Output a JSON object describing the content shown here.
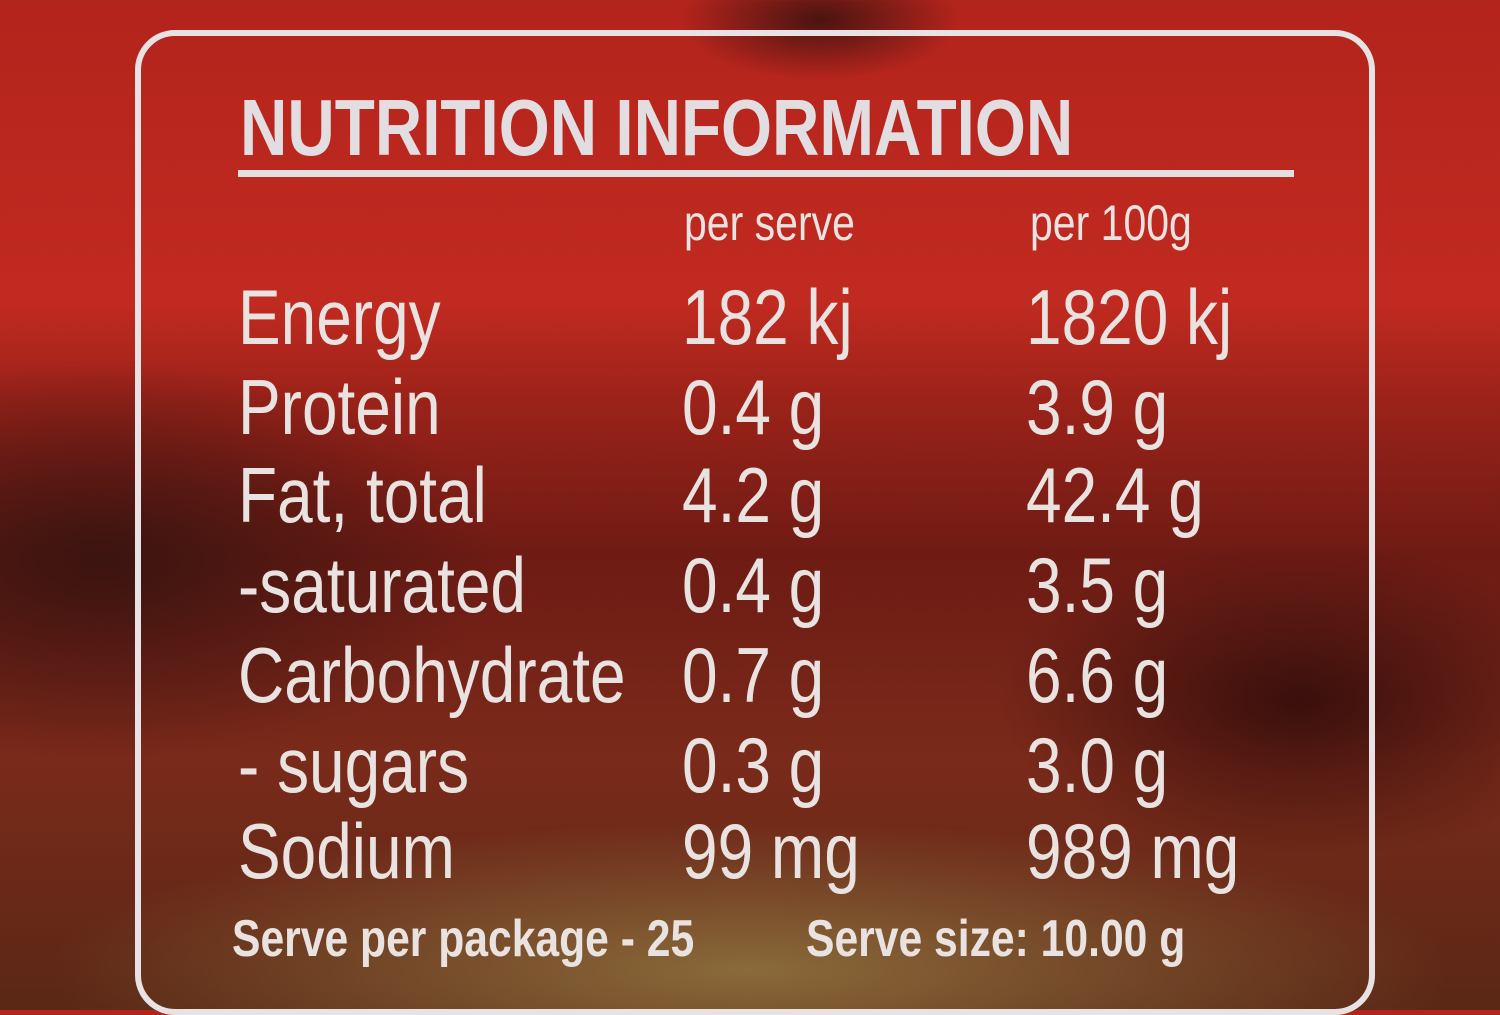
{
  "label": {
    "title": "NUTRITION INFORMATION",
    "columns": [
      "per serve",
      "per 100g"
    ],
    "rows": [
      {
        "name": "Energy",
        "per_serve": "182 kj",
        "per_100g": "1820 kj"
      },
      {
        "name": "Protein",
        "per_serve": "0.4 g",
        "per_100g": "3.9 g"
      },
      {
        "name": "Fat, total",
        "per_serve": "4.2 g",
        "per_100g": "42.4 g"
      },
      {
        "name": "-saturated",
        "per_serve": "0.4 g",
        "per_100g": "3.5 g"
      },
      {
        "name": "Carbohydrate",
        "per_serve": "0.7 g",
        "per_100g": "6.6 g"
      },
      {
        "name": "- sugars",
        "per_serve": "0.3 g",
        "per_100g": "3.0 g"
      },
      {
        "name": "Sodium",
        "per_serve": "99 mg",
        "per_100g": "989 mg"
      }
    ],
    "serves_per_package": "Serve per package - 25",
    "serve_size": "Serve size: 10.00 g"
  },
  "colors": {
    "background": "#b3241c",
    "text": "#e8e2e0"
  }
}
